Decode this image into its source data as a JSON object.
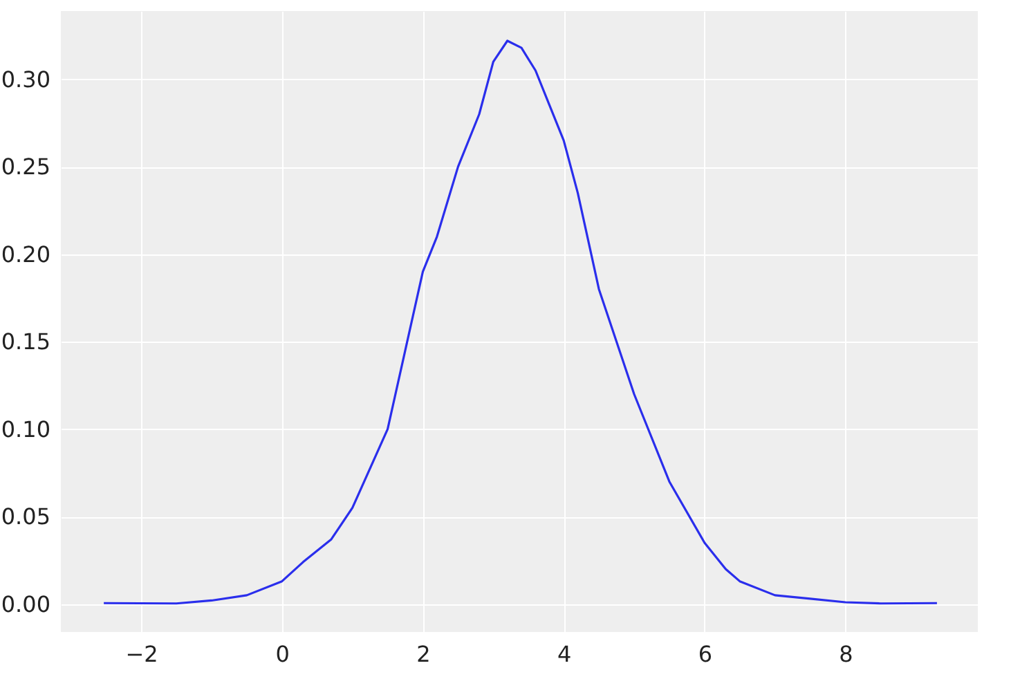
{
  "chart_data": {
    "type": "line",
    "x": [
      -2.53,
      -1.5,
      -1.0,
      -0.5,
      0.0,
      0.3,
      0.7,
      1.0,
      1.5,
      2.0,
      2.2,
      2.5,
      2.8,
      3.0,
      3.2,
      3.4,
      3.6,
      3.8,
      4.0,
      4.2,
      4.5,
      5.0,
      5.5,
      6.0,
      6.3,
      6.5,
      7.0,
      7.5,
      8.0,
      8.5,
      9.3
    ],
    "series": [
      {
        "color": "#2a2eec",
        "values": [
          0.0005,
          0.0003,
          0.002,
          0.005,
          0.013,
          0.024,
          0.037,
          0.055,
          0.1,
          0.19,
          0.21,
          0.25,
          0.28,
          0.31,
          0.322,
          0.318,
          0.305,
          0.285,
          0.265,
          0.235,
          0.18,
          0.12,
          0.07,
          0.035,
          0.02,
          0.013,
          0.005,
          0.003,
          0.001,
          0.0003,
          0.0005
        ]
      }
    ],
    "xlim": [
      -3.14,
      9.88
    ],
    "ylim": [
      -0.016,
      0.339
    ],
    "xticks": [
      -2,
      0,
      2,
      4,
      6,
      8
    ],
    "yticks": [
      {
        "value": 0,
        "label": "0.00"
      },
      {
        "value": 0.05,
        "label": "0.05"
      },
      {
        "value": 0.1,
        "label": "0.10"
      },
      {
        "value": 0.15,
        "label": "0.15"
      },
      {
        "value": 0.2,
        "label": "0.20"
      },
      {
        "value": 0.25,
        "label": "0.25"
      },
      {
        "value": 0.3,
        "label": "0.30"
      }
    ],
    "grid": true,
    "marker": "none",
    "line_style": "solid"
  }
}
